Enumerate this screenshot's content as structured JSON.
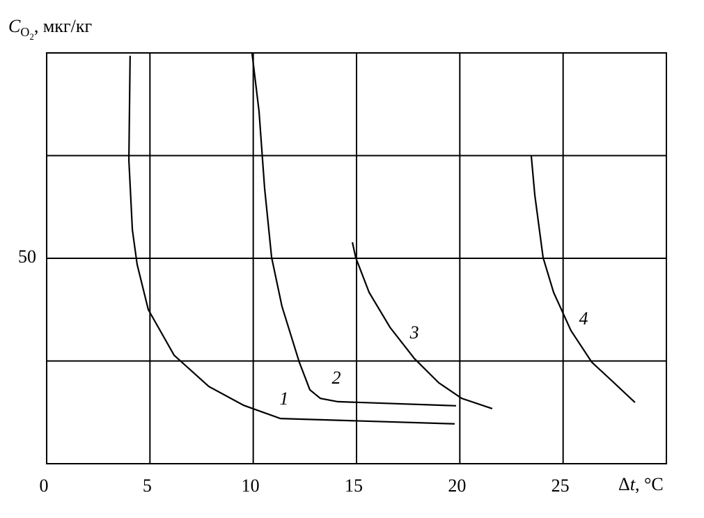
{
  "chart_data": {
    "type": "line",
    "y_label": {
      "symbol": "C",
      "subscript": "O",
      "subsubscript": "2",
      "unit": ", мкг/кг"
    },
    "x_label": {
      "prefix": "Δ",
      "symbol": "t",
      "unit": ", °C"
    },
    "xlim": [
      0,
      30
    ],
    "xticks": [
      0,
      5,
      10,
      15,
      20,
      25
    ],
    "ylim": [
      0,
      100
    ],
    "yticks": [
      50
    ],
    "grid": true,
    "series": [
      {
        "name": "1",
        "color": "#000000",
        "x": [
          4.04,
          3.98,
          4.15,
          4.38,
          4.92,
          6.17,
          7.85,
          9.54,
          11.32,
          19.75
        ],
        "values": [
          99.3,
          73.9,
          56.9,
          48.5,
          37.5,
          26.4,
          18.8,
          14.2,
          11.0,
          9.7
        ]
      },
      {
        "name": "2",
        "color": "#000000",
        "x": [
          9.94,
          10.28,
          10.55,
          10.89,
          11.39,
          12.23,
          12.74,
          13.25,
          14.09,
          19.82
        ],
        "values": [
          100,
          85.8,
          67.1,
          50.2,
          38.3,
          24.7,
          18.0,
          15.9,
          15.1,
          14.1
        ]
      },
      {
        "name": "3",
        "color": "#000000",
        "x": [
          14.8,
          14.96,
          15.61,
          16.62,
          17.8,
          18.98,
          20.09,
          21.57
        ],
        "values": [
          53.9,
          50.2,
          41.7,
          33.2,
          25.6,
          19.7,
          15.9,
          13.4
        ]
      },
      {
        "name": "4",
        "color": "#000000",
        "x": [
          23.46,
          23.63,
          24.03,
          24.54,
          25.38,
          26.39,
          27.4,
          28.48
        ],
        "values": [
          74.9,
          65.4,
          50.2,
          41.7,
          32.4,
          24.7,
          20.0,
          14.9
        ]
      }
    ]
  }
}
